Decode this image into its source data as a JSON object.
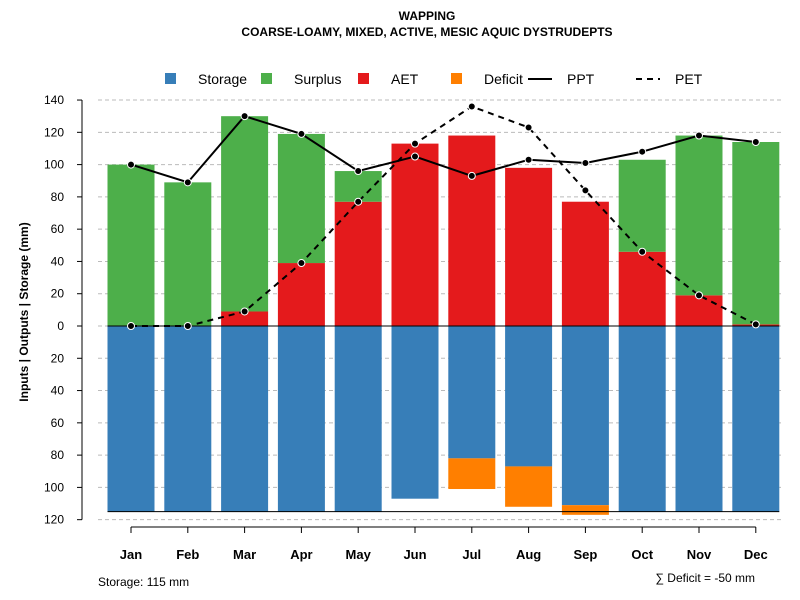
{
  "chart_data": {
    "type": "bar",
    "title": "WAPPING",
    "subtitle": "COARSE-LOAMY, MIXED, ACTIVE, MESIC AQUIC DYSTRUDEPTS",
    "ylabel": "Inputs | Outputs | Storage    (mm)",
    "ylim": [
      -120,
      140
    ],
    "yticks": [
      140,
      120,
      100,
      80,
      60,
      40,
      20,
      0,
      -20,
      -40,
      -60,
      -80,
      -100,
      -120
    ],
    "categories": [
      "Jan",
      "Feb",
      "Mar",
      "Apr",
      "May",
      "Jun",
      "Jul",
      "Aug",
      "Sep",
      "Oct",
      "Nov",
      "Dec"
    ],
    "legend": [
      {
        "label": "Storage",
        "color": "#377EB8",
        "kind": "box"
      },
      {
        "label": "Surplus",
        "color": "#4DAF4A",
        "kind": "box"
      },
      {
        "label": "AET",
        "color": "#E41A1C",
        "kind": "box"
      },
      {
        "label": "Deficit",
        "color": "#FF7F00",
        "kind": "box"
      },
      {
        "label": "PPT",
        "color": "#000000",
        "kind": "solid"
      },
      {
        "label": "PET",
        "color": "#000000",
        "kind": "dashed"
      }
    ],
    "series": [
      {
        "name": "Storage",
        "values": [
          -115,
          -115,
          -115,
          -115,
          -115,
          -107,
          -82,
          -87,
          -111,
          -115,
          -115,
          -115
        ]
      },
      {
        "name": "Deficit",
        "values": [
          0,
          0,
          0,
          0,
          0,
          0,
          -19,
          -25,
          -6,
          0,
          0,
          0
        ]
      },
      {
        "name": "AET",
        "values": [
          0,
          0,
          9,
          39,
          77,
          113,
          118,
          98,
          77,
          46,
          19,
          1
        ]
      },
      {
        "name": "Surplus",
        "values": [
          100,
          89,
          121,
          80,
          19,
          0,
          0,
          0,
          0,
          57,
          99,
          113
        ]
      },
      {
        "name": "PPT",
        "values": [
          100,
          89,
          130,
          119,
          96,
          105,
          93,
          103,
          101,
          108,
          118,
          114
        ]
      },
      {
        "name": "PET",
        "values": [
          0,
          0,
          9,
          39,
          77,
          113,
          136,
          123,
          84,
          46,
          19,
          1
        ]
      }
    ],
    "storage_note": "Storage: 115 mm",
    "deficit_note": "∑ Deficit = -50 mm",
    "grid": true
  }
}
